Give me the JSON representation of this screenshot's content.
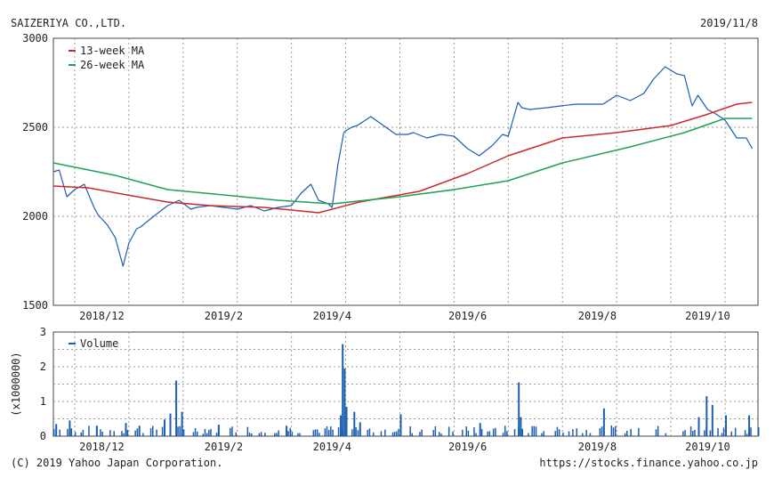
{
  "header": {
    "company": "SAIZERIYA CO.,LTD.",
    "date": "2019/11/8"
  },
  "footer": {
    "copyright": "(C) 2019 Yahoo Japan Corporation.",
    "url": "https://stocks.finance.yahoo.co.jp"
  },
  "colors": {
    "price": "#1b5fb0",
    "ma13": "#cc2a2a",
    "ma26": "#22a05a",
    "volume": "#1b5fb0",
    "grid": "#9a9a9a"
  },
  "chart_data": [
    {
      "type": "line",
      "panel": "price",
      "ylim": [
        1500,
        3000
      ],
      "y_ticks": [
        "3000",
        "2500",
        "2000",
        "1500"
      ],
      "x_ticks": [
        "2018/12",
        "2019/2",
        "2019/4",
        "2019/6",
        "2019/8",
        "2019/10"
      ],
      "x_range": [
        "2018/11/12",
        "2019/11/11"
      ],
      "grid": true,
      "legend": "top-left",
      "series": [
        {
          "name": "",
          "key": "price",
          "x": [
            "2018/11/12",
            "2018/11/15",
            "2018/11/19",
            "2018/11/23",
            "2018/11/28",
            "2018/12/3",
            "2018/12/5",
            "2018/12/10",
            "2018/12/14",
            "2018/12/18",
            "2018/12/21",
            "2018/12/25",
            "2018/12/27",
            "2019/1/4",
            "2019/1/10",
            "2019/1/16",
            "2019/1/22",
            "2019/1/25",
            "2019/2/1",
            "2019/2/8",
            "2019/2/15",
            "2019/2/22",
            "2019/3/1",
            "2019/3/8",
            "2019/3/15",
            "2019/3/20",
            "2019/3/25",
            "2019/3/29",
            "2019/4/3",
            "2019/4/5",
            "2019/4/8",
            "2019/4/11",
            "2019/4/12",
            "2019/4/15",
            "2019/4/18",
            "2019/4/25",
            "2019/5/8",
            "2019/5/14",
            "2019/5/17",
            "2019/5/24",
            "2019/5/31",
            "2019/6/7",
            "2019/6/14",
            "2019/6/20",
            "2019/6/27",
            "2019/7/2",
            "2019/7/5",
            "2019/7/10",
            "2019/7/12",
            "2019/7/16",
            "2019/7/25",
            "2019/8/1",
            "2019/8/9",
            "2019/8/16",
            "2019/8/23",
            "2019/8/30",
            "2019/9/6",
            "2019/9/13",
            "2019/9/18",
            "2019/9/24",
            "2019/9/30",
            "2019/10/4",
            "2019/10/8",
            "2019/10/11",
            "2019/10/16",
            "2019/10/21",
            "2019/10/25",
            "2019/10/31",
            "2019/11/5",
            "2019/11/8"
          ],
          "values": [
            2250,
            2260,
            2110,
            2150,
            2180,
            2050,
            2010,
            1950,
            1880,
            1720,
            1850,
            1930,
            1940,
            2010,
            2060,
            2090,
            2040,
            2050,
            2060,
            2050,
            2040,
            2060,
            2030,
            2050,
            2060,
            2130,
            2180,
            2090,
            2070,
            2050,
            2290,
            2470,
            2480,
            2500,
            2510,
            2560,
            2460,
            2460,
            2470,
            2440,
            2460,
            2450,
            2380,
            2340,
            2400,
            2460,
            2450,
            2640,
            2610,
            2600,
            2610,
            2620,
            2630,
            2630,
            2630,
            2680,
            2650,
            2690,
            2770,
            2840,
            2800,
            2790,
            2620,
            2680,
            2600,
            2570,
            2540,
            2440,
            2440,
            2380
          ]
        },
        {
          "name": "13-week MA",
          "key": "ma13",
          "x": [
            "2018/11/12",
            "2018/11/30",
            "2018/12/20",
            "2019/1/10",
            "2019/2/1",
            "2019/3/1",
            "2019/3/29",
            "2019/4/19",
            "2019/5/20",
            "2019/6/14",
            "2019/7/5",
            "2019/8/2",
            "2019/8/30",
            "2019/9/27",
            "2019/10/15",
            "2019/10/31",
            "2019/11/8"
          ],
          "values": [
            2170,
            2160,
            2120,
            2080,
            2060,
            2050,
            2020,
            2080,
            2140,
            2240,
            2340,
            2440,
            2470,
            2510,
            2570,
            2630,
            2640
          ]
        },
        {
          "name": "26-week MA",
          "key": "ma26",
          "x": [
            "2018/11/12",
            "2018/12/14",
            "2019/1/10",
            "2019/2/8",
            "2019/3/8",
            "2019/4/5",
            "2019/5/10",
            "2019/6/7",
            "2019/7/5",
            "2019/8/2",
            "2019/9/6",
            "2019/10/4",
            "2019/10/25",
            "2019/11/8"
          ],
          "values": [
            2300,
            2230,
            2150,
            2120,
            2090,
            2070,
            2110,
            2150,
            2200,
            2300,
            2390,
            2470,
            2550,
            2550
          ]
        }
      ]
    },
    {
      "type": "bar",
      "panel": "volume",
      "ylim": [
        0,
        3
      ],
      "y_ticks": [
        "3",
        "2",
        "1",
        "0"
      ],
      "ylabel": "(x1000000)",
      "x_ticks": [
        "2018/12",
        "2019/2",
        "2019/4",
        "2019/6",
        "2019/8",
        "2019/10"
      ],
      "grid": true,
      "legend": "top-left",
      "series": [
        {
          "name": "Volume",
          "x": [
            "2018/11/13",
            "2018/11/20",
            "2018/12/4",
            "2018/12/19",
            "2018/12/26",
            "2019/1/8",
            "2019/1/11",
            "2019/1/14",
            "2019/1/17",
            "2019/2/5",
            "2019/3/12",
            "2019/4/9",
            "2019/4/10",
            "2019/4/11",
            "2019/4/12",
            "2019/4/16",
            "2019/4/19",
            "2019/5/10",
            "2019/6/20",
            "2019/7/10",
            "2019/7/11",
            "2019/8/23",
            "2019/10/11",
            "2019/10/15",
            "2019/10/18",
            "2019/10/25",
            "2019/11/6"
          ],
          "values": [
            0.35,
            0.45,
            0.3,
            0.38,
            0.3,
            0.48,
            0.65,
            1.6,
            0.7,
            0.33,
            0.3,
            0.6,
            2.65,
            1.95,
            0.85,
            0.7,
            0.4,
            0.63,
            0.38,
            1.55,
            0.55,
            0.8,
            0.55,
            1.15,
            0.9,
            0.6,
            0.6
          ],
          "baseline": 0.22
        }
      ]
    }
  ]
}
